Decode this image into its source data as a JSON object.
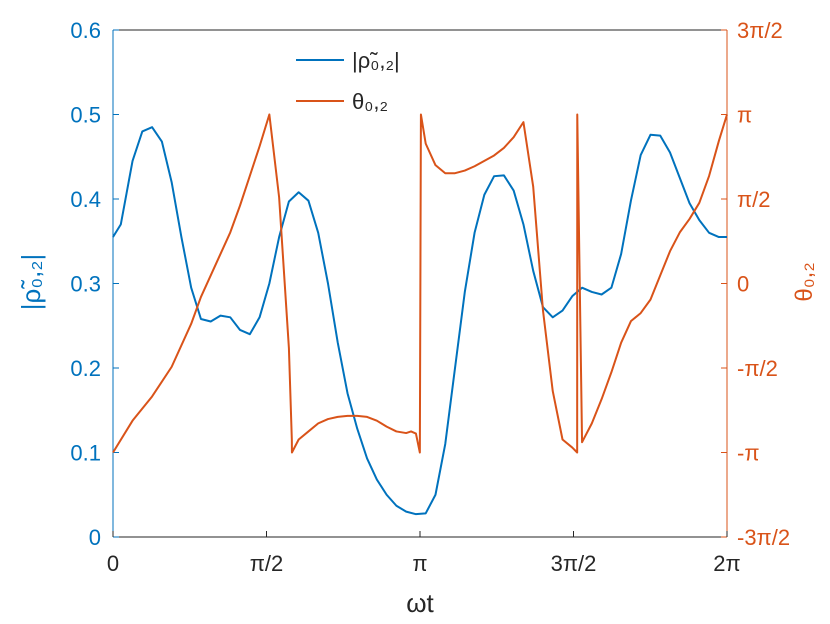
{
  "chart_data": {
    "type": "line",
    "xlabel": "ωt",
    "ylabel_left": "|ρ̃₀,₂|",
    "ylabel_right": "θ₀,₂",
    "xlim": [
      0,
      6.2832
    ],
    "ylim_left": [
      0,
      0.6
    ],
    "ylim_right": [
      -4.7124,
      4.7124
    ],
    "x_ticks": [
      {
        "value": 0,
        "label": "0"
      },
      {
        "value": 1.5708,
        "label": "π/2"
      },
      {
        "value": 3.1416,
        "label": "π"
      },
      {
        "value": 4.7124,
        "label": "3π/2"
      },
      {
        "value": 6.2832,
        "label": "2π"
      }
    ],
    "y_ticks_left": [
      {
        "value": 0,
        "label": "0"
      },
      {
        "value": 0.1,
        "label": "0.1"
      },
      {
        "value": 0.2,
        "label": "0.2"
      },
      {
        "value": 0.3,
        "label": "0.3"
      },
      {
        "value": 0.4,
        "label": "0.4"
      },
      {
        "value": 0.5,
        "label": "0.5"
      },
      {
        "value": 0.6,
        "label": "0.6"
      }
    ],
    "y_ticks_right": [
      {
        "value": -4.7124,
        "label": "-3π/2"
      },
      {
        "value": -3.1416,
        "label": "-π"
      },
      {
        "value": -1.5708,
        "label": "-π/2"
      },
      {
        "value": 0,
        "label": "0"
      },
      {
        "value": 1.5708,
        "label": "π/2"
      },
      {
        "value": 3.1416,
        "label": "π"
      },
      {
        "value": 4.7124,
        "label": "3π/2"
      }
    ],
    "grid": false,
    "legend_position": "top-center",
    "series": [
      {
        "name": "|ρ̃₀,₂|",
        "axis": "left",
        "color": "#0072BD",
        "x": [
          0,
          0.08,
          0.2,
          0.3,
          0.4,
          0.5,
          0.6,
          0.7,
          0.8,
          0.9,
          1.0,
          1.1,
          1.2,
          1.3,
          1.4,
          1.5,
          1.6,
          1.7,
          1.8,
          1.9,
          2.0,
          2.1,
          2.2,
          2.3,
          2.4,
          2.5,
          2.6,
          2.7,
          2.8,
          2.9,
          3.0,
          3.1,
          3.2,
          3.3,
          3.4,
          3.5,
          3.6,
          3.7,
          3.8,
          3.9,
          4.0,
          4.1,
          4.2,
          4.3,
          4.4,
          4.5,
          4.6,
          4.7,
          4.8,
          4.9,
          5.0,
          5.1,
          5.2,
          5.3,
          5.4,
          5.5,
          5.6,
          5.7,
          5.8,
          5.9,
          6.0,
          6.1,
          6.2,
          6.2832
        ],
        "y": [
          0.355,
          0.37,
          0.445,
          0.48,
          0.485,
          0.468,
          0.42,
          0.355,
          0.295,
          0.258,
          0.255,
          0.262,
          0.26,
          0.245,
          0.24,
          0.26,
          0.3,
          0.355,
          0.397,
          0.408,
          0.398,
          0.36,
          0.3,
          0.23,
          0.17,
          0.128,
          0.093,
          0.068,
          0.05,
          0.037,
          0.03,
          0.027,
          0.028,
          0.05,
          0.11,
          0.2,
          0.29,
          0.36,
          0.405,
          0.427,
          0.428,
          0.41,
          0.37,
          0.315,
          0.272,
          0.26,
          0.268,
          0.285,
          0.295,
          0.29,
          0.287,
          0.295,
          0.335,
          0.398,
          0.452,
          0.476,
          0.475,
          0.455,
          0.425,
          0.395,
          0.375,
          0.36,
          0.355,
          0.355
        ]
      },
      {
        "name": "θ₀,₂",
        "axis": "right",
        "color": "#D95319",
        "x": [
          0,
          0.2,
          0.4,
          0.6,
          0.8,
          0.9,
          1.0,
          1.1,
          1.2,
          1.3,
          1.4,
          1.5,
          1.6,
          1.7,
          1.8,
          1.83,
          1.831,
          1.9,
          2.0,
          2.1,
          2.2,
          2.3,
          2.4,
          2.5,
          2.6,
          2.7,
          2.8,
          2.9,
          3.0,
          3.05,
          3.1,
          3.14,
          3.15,
          3.151,
          3.2,
          3.3,
          3.4,
          3.5,
          3.6,
          3.7,
          3.8,
          3.9,
          4.0,
          4.1,
          4.2,
          4.3,
          4.4,
          4.5,
          4.6,
          4.7,
          4.75,
          4.751,
          4.8,
          4.9,
          5.0,
          5.1,
          5.2,
          5.3,
          5.4,
          5.5,
          5.6,
          5.7,
          5.8,
          5.9,
          6.0,
          6.1,
          6.2,
          6.2832
        ],
        "y": [
          -3.1416,
          -2.55,
          -2.1,
          -1.55,
          -0.75,
          -0.25,
          0.15,
          0.55,
          0.95,
          1.45,
          2.0,
          2.55,
          3.1416,
          1.6,
          -1.2,
          -2.9,
          -3.1416,
          -2.9,
          -2.75,
          -2.6,
          -2.52,
          -2.48,
          -2.46,
          -2.46,
          -2.48,
          -2.55,
          -2.66,
          -2.75,
          -2.78,
          -2.75,
          -2.79,
          -3.1416,
          2.6,
          3.1416,
          2.6,
          2.2,
          2.05,
          2.05,
          2.1,
          2.18,
          2.28,
          2.38,
          2.52,
          2.72,
          3.0,
          1.8,
          -0.5,
          -2.0,
          -2.9,
          -3.05,
          -3.1416,
          3.1416,
          -2.95,
          -2.6,
          -2.15,
          -1.65,
          -1.1,
          -0.7,
          -0.55,
          -0.3,
          0.15,
          0.6,
          0.95,
          1.2,
          1.5,
          2.0,
          2.65,
          3.1416
        ]
      }
    ]
  }
}
